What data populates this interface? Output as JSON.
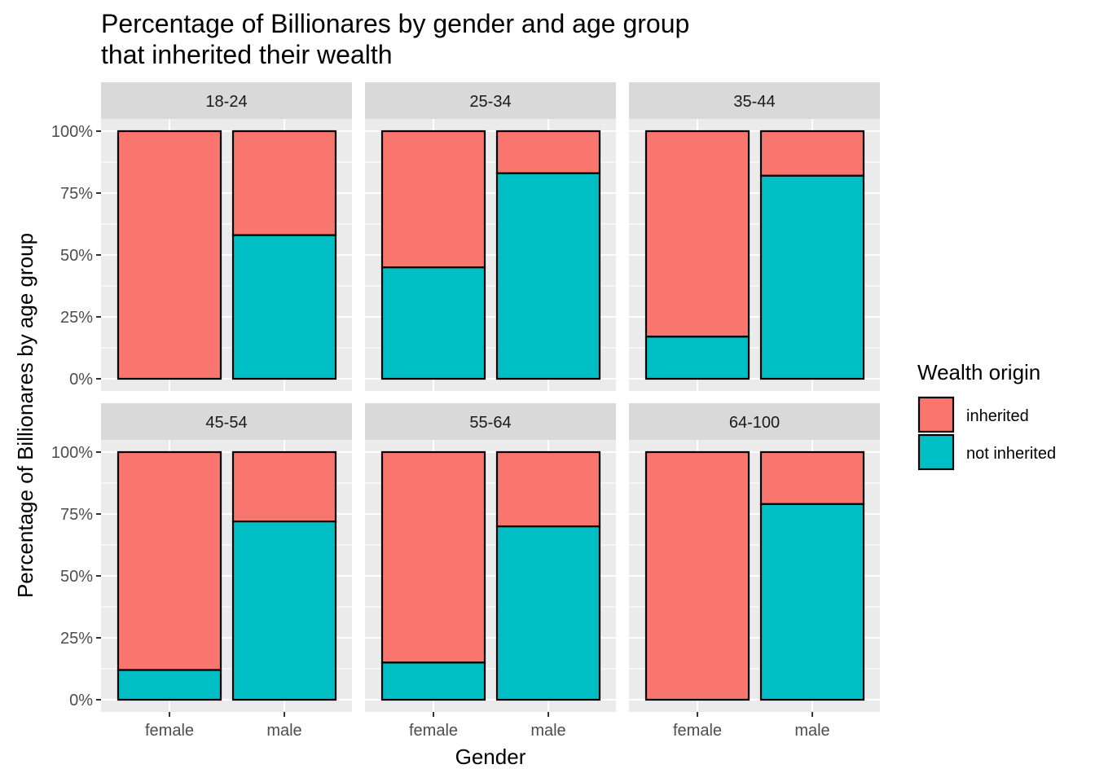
{
  "chart_data": {
    "type": "bar",
    "stacked": true,
    "normalized": true,
    "title_lines": [
      "Percentage of Billionares by gender and age group",
      "that inherited their wealth"
    ],
    "xlabel": "Gender",
    "ylabel": "Percentage of Billionares by age group",
    "ylim": [
      0,
      1
    ],
    "y_ticks": [
      0,
      0.25,
      0.5,
      0.75,
      1
    ],
    "y_tick_labels": [
      "0%",
      "25%",
      "50%",
      "75%",
      "100%"
    ],
    "categories": [
      "female",
      "male"
    ],
    "grid": true,
    "legend": {
      "title": "Wealth origin",
      "position": "right",
      "entries": [
        {
          "label": "inherited",
          "color": "#F8766D"
        },
        {
          "label": "not inherited",
          "color": "#00BFC4"
        }
      ]
    },
    "panels": [
      {
        "label": "18-24",
        "not_inherited": [
          0.0,
          0.58
        ],
        "inherited": [
          1.0,
          0.42
        ]
      },
      {
        "label": "25-34",
        "not_inherited": [
          0.45,
          0.83
        ],
        "inherited": [
          0.55,
          0.17
        ]
      },
      {
        "label": "35-44",
        "not_inherited": [
          0.17,
          0.82
        ],
        "inherited": [
          0.83,
          0.18
        ]
      },
      {
        "label": "45-54",
        "not_inherited": [
          0.12,
          0.72
        ],
        "inherited": [
          0.88,
          0.28
        ]
      },
      {
        "label": "55-64",
        "not_inherited": [
          0.15,
          0.7
        ],
        "inherited": [
          0.85,
          0.3
        ]
      },
      {
        "label": "64-100",
        "not_inherited": [
          0.0,
          0.79
        ],
        "inherited": [
          1.0,
          0.21
        ]
      }
    ]
  }
}
